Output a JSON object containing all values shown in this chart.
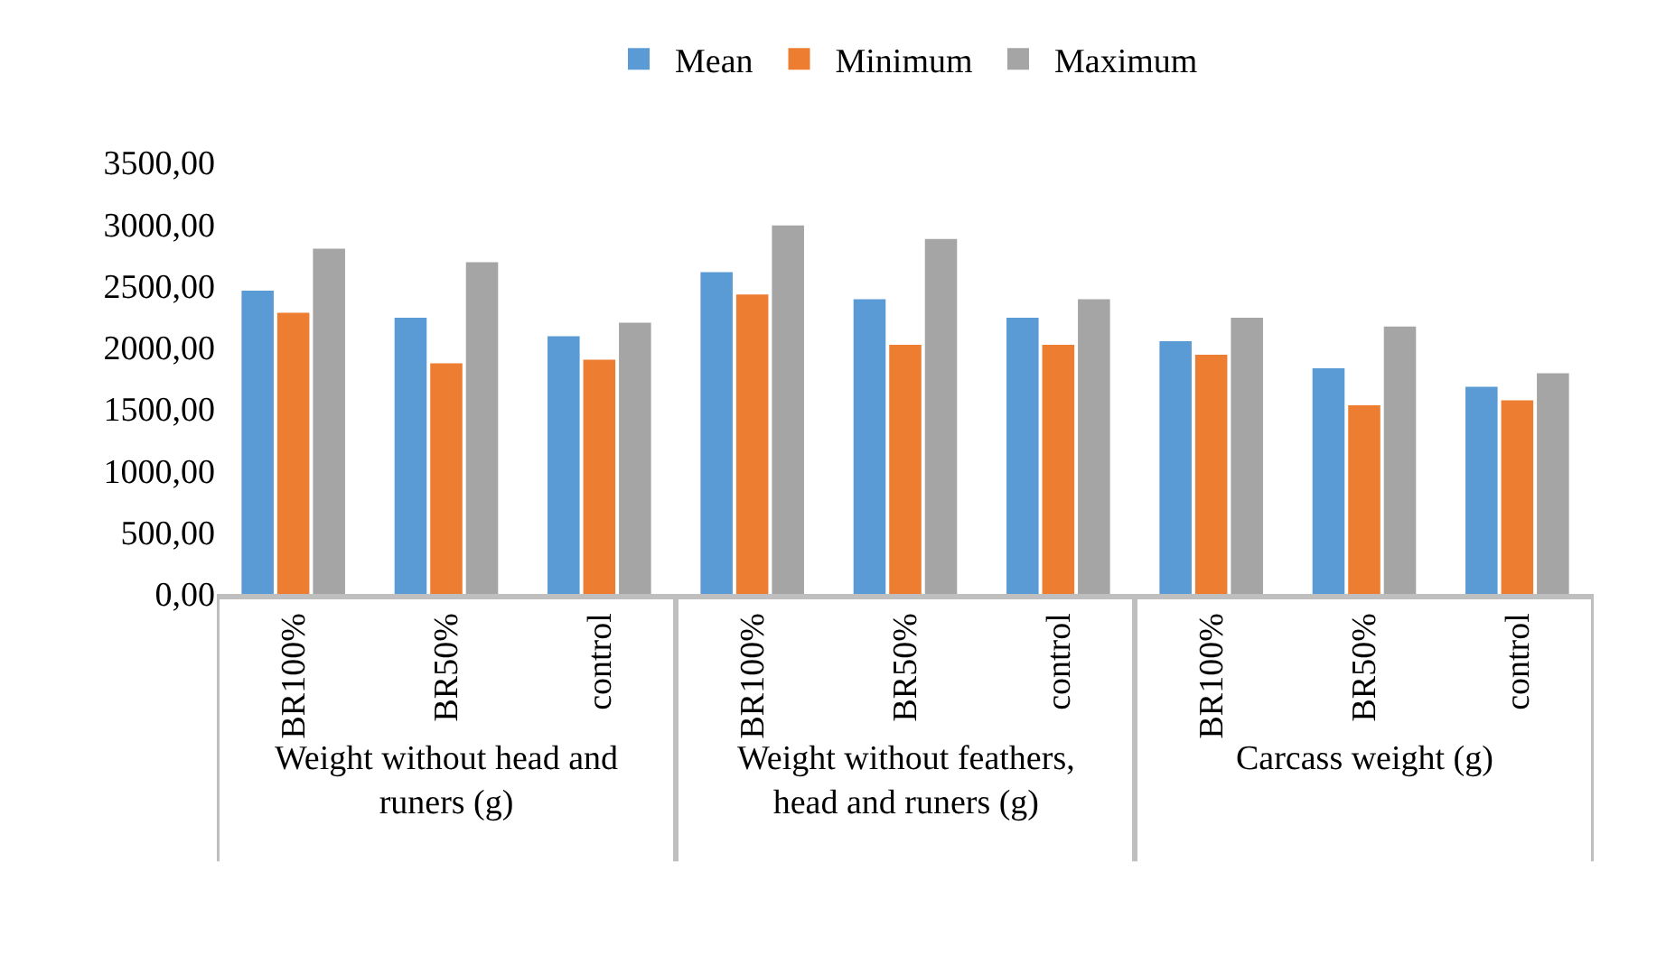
{
  "chart_data": {
    "type": "bar",
    "categories": [
      "BR100%",
      "BR50%",
      "control",
      "BR100%",
      "BR50%",
      "control",
      "BR100%",
      "BR50%",
      "control"
    ],
    "series": [
      {
        "name": "Mean",
        "color": "#5b9bd5",
        "values": [
          2460,
          2240,
          2090,
          2610,
          2390,
          2240,
          2050,
          1830,
          1680
        ]
      },
      {
        "name": "Minimum",
        "color": "#ed7d31",
        "values": [
          2280,
          1870,
          1900,
          2430,
          2020,
          2020,
          1940,
          1530,
          1570
        ]
      },
      {
        "name": "Maximum",
        "color": "#a5a5a5",
        "values": [
          2800,
          2690,
          2200,
          2990,
          2880,
          2390,
          2240,
          2170,
          1790
        ]
      }
    ],
    "ylim": [
      0,
      3500
    ],
    "yticks": [
      {
        "value": 0,
        "label": "0,00"
      },
      {
        "value": 500,
        "label": "500,00"
      },
      {
        "value": 1000,
        "label": "1000,00"
      },
      {
        "value": 1500,
        "label": "1500,00"
      },
      {
        "value": 2000,
        "label": "2000,00"
      },
      {
        "value": 2500,
        "label": "2500,00"
      },
      {
        "value": 3000,
        "label": "3000,00"
      },
      {
        "value": 3500,
        "label": "3500,00"
      }
    ],
    "annotations": [
      "Weight without head and\nruners (g)",
      "Weight without feathers,\nhead and runers (g)",
      "Carcass weight (g)"
    ],
    "grid": false,
    "legend": "top"
  }
}
